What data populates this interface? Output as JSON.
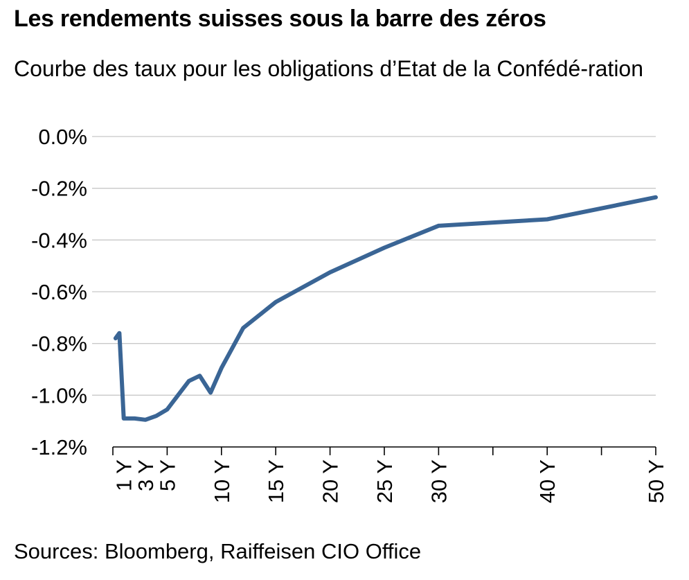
{
  "title": "Les rendements suisses sous la barre des zéros",
  "subtitle": "Courbe des taux pour les obligations d’Etat de la Confédé-ration",
  "source": "Sources: Bloomberg, Raiffeisen CIO Office",
  "colors": {
    "line": "#3a6595",
    "grid": "#c8c8c8",
    "axis": "#000000"
  },
  "chart_data": {
    "type": "line",
    "title": "Les rendements suisses sous la barre des zéros",
    "ylim": [
      -1.2,
      0.0
    ],
    "xlim": [
      0,
      50
    ],
    "yticks": [
      0.0,
      -0.2,
      -0.4,
      -0.6,
      -0.8,
      -1.0,
      -1.2
    ],
    "ytick_labels": [
      "0.0%",
      "-0.2%",
      "-0.4%",
      "-0.6%",
      "-0.8%",
      "-1.0%",
      "-1.2%"
    ],
    "xtick_marks": [
      0,
      5,
      10,
      15,
      20,
      25,
      30,
      35,
      40,
      45,
      50
    ],
    "xtick_labels": [
      {
        "x": 1,
        "label": "1 Y"
      },
      {
        "x": 3,
        "label": "3 Y"
      },
      {
        "x": 5,
        "label": "5 Y"
      },
      {
        "x": 10,
        "label": "10 Y"
      },
      {
        "x": 15,
        "label": "15 Y"
      },
      {
        "x": 20,
        "label": "20 Y"
      },
      {
        "x": 25,
        "label": "25 Y"
      },
      {
        "x": 30,
        "label": "30 Y"
      },
      {
        "x": 40,
        "label": "40 Y"
      },
      {
        "x": 50,
        "label": "50 Y"
      }
    ],
    "grid": true,
    "legend": "none",
    "series": [
      {
        "x": [
          0.25,
          0.6,
          1,
          2,
          3,
          4,
          5,
          6,
          7,
          8,
          9,
          10,
          12,
          15,
          20,
          25,
          30,
          40,
          50
        ],
        "values": [
          -0.78,
          -0.76,
          -1.09,
          -1.09,
          -1.095,
          -1.08,
          -1.055,
          -1.0,
          -0.945,
          -0.925,
          -0.99,
          -0.895,
          -0.74,
          -0.64,
          -0.525,
          -0.43,
          -0.345,
          -0.32,
          -0.235
        ]
      }
    ]
  }
}
